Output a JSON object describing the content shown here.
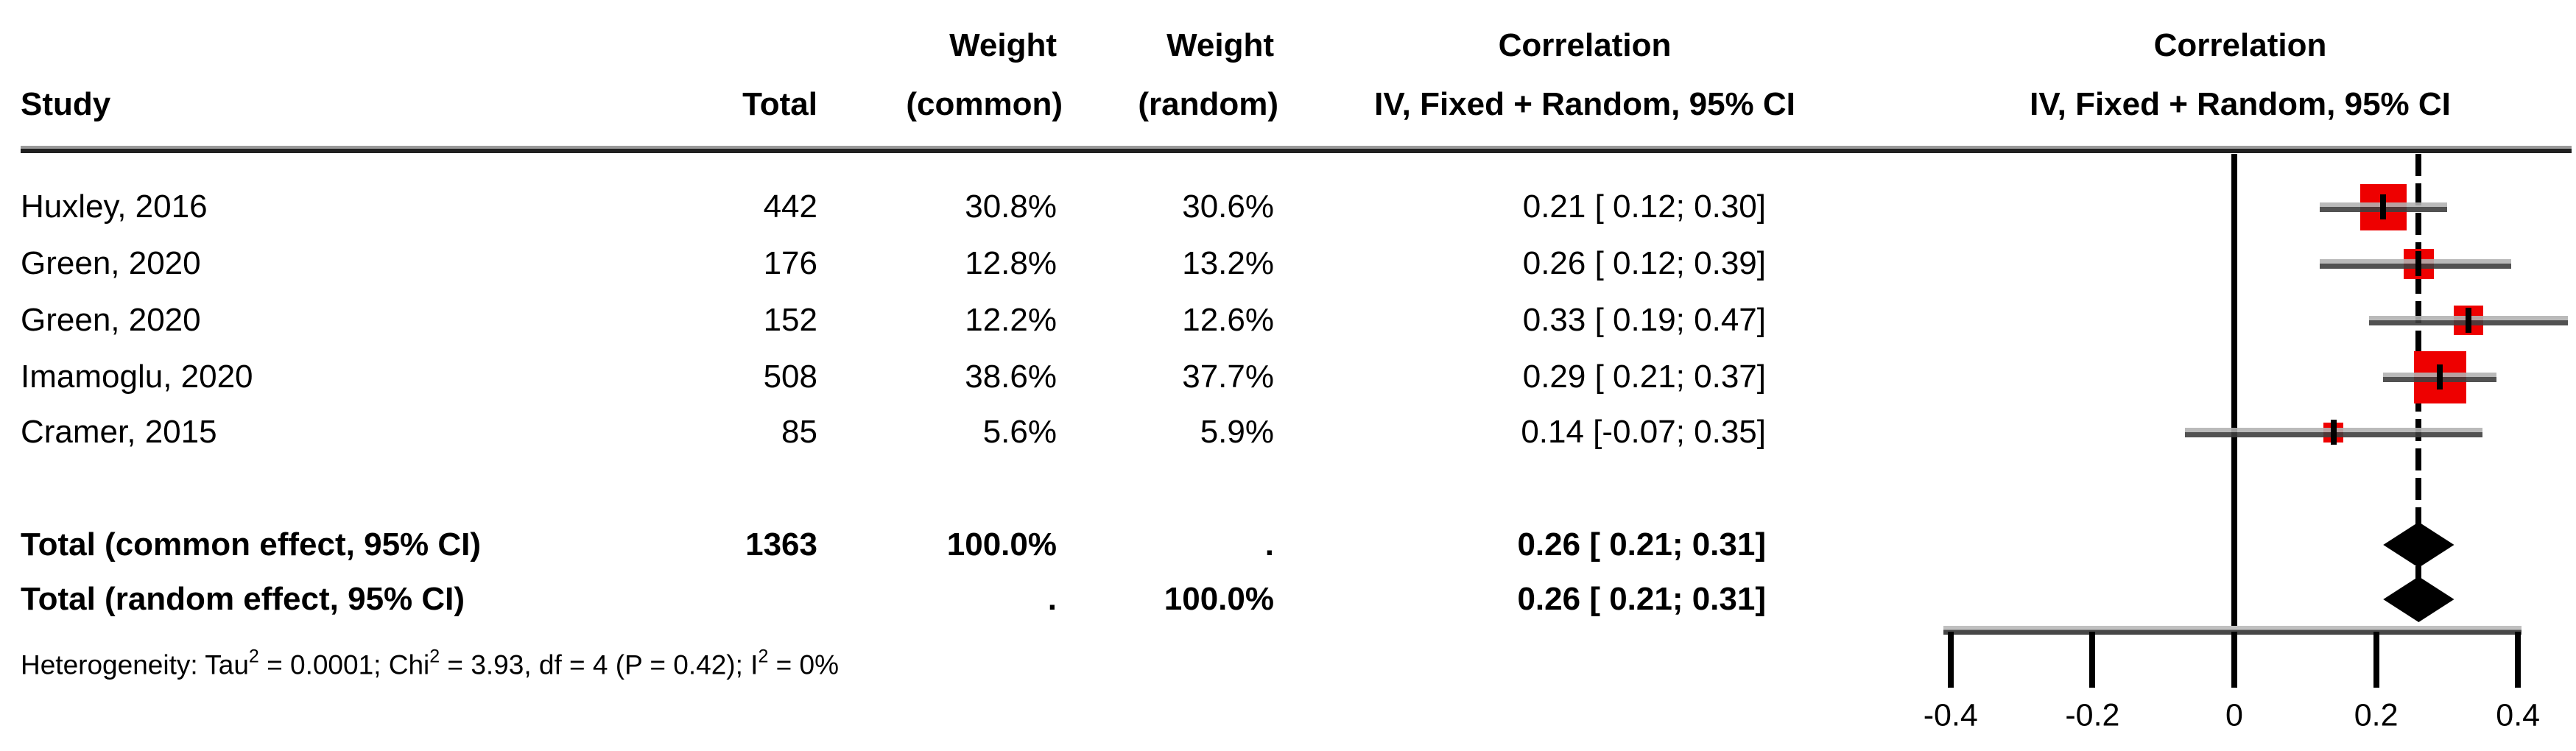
{
  "chart_data": {
    "type": "forest",
    "effect_measure": "Correlation",
    "model": "IV, Fixed + Random",
    "header": {
      "study": "Study",
      "total": "Total",
      "weight_line1": "Weight",
      "weight_common_line2": "(common)",
      "weight_random_line2": "(random)",
      "corr_line1": "Correlation",
      "corr_line2": "IV, Fixed + Random, 95% CI",
      "plot_line1": "Correlation",
      "plot_line2": "IV, Fixed + Random, 95% CI"
    },
    "studies": [
      {
        "study": "Huxley, 2016",
        "total": "442",
        "weight_common": "30.8%",
        "weight_random": "30.6%",
        "weight_pct": 30.8,
        "estimate": 0.21,
        "ci_lower": 0.12,
        "ci_upper": 0.3,
        "ci_text": "0.21 [ 0.12; 0.30]"
      },
      {
        "study": "Green, 2020",
        "total": "176",
        "weight_common": "12.8%",
        "weight_random": "13.2%",
        "weight_pct": 12.8,
        "estimate": 0.26,
        "ci_lower": 0.12,
        "ci_upper": 0.39,
        "ci_text": "0.26 [ 0.12; 0.39]"
      },
      {
        "study": "Green, 2020",
        "total": "152",
        "weight_common": "12.2%",
        "weight_random": "12.6%",
        "weight_pct": 12.2,
        "estimate": 0.33,
        "ci_lower": 0.19,
        "ci_upper": 0.47,
        "ci_text": "0.33 [ 0.19; 0.47]"
      },
      {
        "study": "Imamoglu, 2020",
        "total": "508",
        "weight_common": "38.6%",
        "weight_random": "37.7%",
        "weight_pct": 38.6,
        "estimate": 0.29,
        "ci_lower": 0.21,
        "ci_upper": 0.37,
        "ci_text": "0.29 [ 0.21; 0.37]"
      },
      {
        "study": "Cramer, 2015",
        "total": "85",
        "weight_common": "5.6%",
        "weight_random": "5.9%",
        "weight_pct": 5.6,
        "estimate": 0.14,
        "ci_lower": -0.07,
        "ci_upper": 0.35,
        "ci_text": "0.14 [-0.07; 0.35]"
      }
    ],
    "totals": [
      {
        "label": "Total (common effect, 95% CI)",
        "total": "1363",
        "weight_common": "100.0%",
        "weight_random": ".",
        "estimate": 0.26,
        "ci_lower": 0.21,
        "ci_upper": 0.31,
        "ci_text": "0.26 [ 0.21; 0.31]"
      },
      {
        "label": "Total (random effect, 95% CI)",
        "total": "",
        "weight_common": ".",
        "weight_random": "100.0%",
        "estimate": 0.26,
        "ci_lower": 0.21,
        "ci_upper": 0.31,
        "ci_text": "0.26 [ 0.21; 0.31]"
      }
    ],
    "heterogeneity": {
      "prefix": "Heterogeneity: Tau",
      "sup1": "2",
      "mid1": " = 0.0001; Chi",
      "sup2": "2",
      "mid2": " = 3.93, df = 4 (P = 0.42); I",
      "sup3": "2",
      "suffix": " = 0%"
    },
    "x_axis": {
      "ticks": [
        -0.4,
        -0.2,
        0,
        0.2,
        0.4
      ],
      "tick_labels": [
        "-0.4",
        "-0.2",
        "0",
        "0.2",
        "0.4"
      ],
      "range": [
        -0.41,
        0.41
      ],
      "zero_line": 0,
      "dashed_line_at": 0.26,
      "grid": false
    },
    "legend_position": "none"
  },
  "colors": {
    "background": "#ffffff",
    "text": "#000000",
    "square": "#ee0000",
    "diamond": "#000000",
    "line": "#000000",
    "ci_bar_top": "#b2b2b2",
    "ci_bar_bottom": "#3f3f3f"
  }
}
